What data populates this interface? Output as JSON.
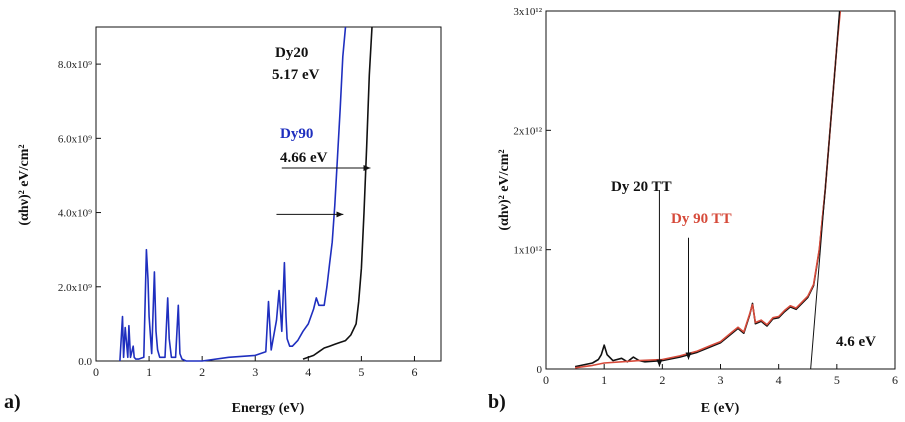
{
  "chart_data": [
    {
      "type": "line",
      "panel_label": "a)",
      "xlabel": "Energy (eV)",
      "ylabel": "(αhν)² eV/cm²",
      "xlim": [
        0,
        6.5
      ],
      "ylim": [
        0,
        9000000000.0
      ],
      "x_ticks": [
        0,
        1,
        2,
        3,
        4,
        5,
        6
      ],
      "y_ticks": [
        {
          "value": 0,
          "label": "0.0"
        },
        {
          "value": 2000000000.0,
          "label": "2.0x10⁹"
        },
        {
          "value": 4000000000.0,
          "label": "4.0x10⁹"
        },
        {
          "value": 6000000000.0,
          "label": "6.0x10⁹"
        },
        {
          "value": 8000000000.0,
          "label": "8.0x10⁹"
        }
      ],
      "series": [
        {
          "name": "Dy90",
          "color": "#1f2fbf",
          "x": [
            0.45,
            0.5,
            0.52,
            0.55,
            0.6,
            0.62,
            0.65,
            0.7,
            0.72,
            0.75,
            0.8,
            0.9,
            0.95,
            0.98,
            1.0,
            1.05,
            1.1,
            1.13,
            1.16,
            1.2,
            1.3,
            1.35,
            1.38,
            1.42,
            1.5,
            1.55,
            1.58,
            1.62,
            1.7,
            2.0,
            2.5,
            3.0,
            3.2,
            3.25,
            3.3,
            3.4,
            3.45,
            3.5,
            3.55,
            3.58,
            3.6,
            3.65,
            3.7,
            3.8,
            3.9,
            4.0,
            4.1,
            4.15,
            4.2,
            4.3,
            4.35,
            4.4,
            4.45,
            4.5,
            4.55,
            4.6,
            4.65,
            4.7
          ],
          "y": [
            0,
            1200000000.0,
            100000000.0,
            900000000.0,
            100000000.0,
            950000000.0,
            100000000.0,
            400000000.0,
            100000000.0,
            50000000.0,
            50000000.0,
            100000000.0,
            3000000000.0,
            2200000000.0,
            1200000000.0,
            200000000.0,
            2400000000.0,
            800000000.0,
            300000000.0,
            100000000.0,
            100000000.0,
            1700000000.0,
            600000000.0,
            100000000.0,
            100000000.0,
            1500000000.0,
            200000000.0,
            50000000.0,
            0.0,
            0.0,
            100000000.0,
            150000000.0,
            250000000.0,
            1600000000.0,
            300000000.0,
            1100000000.0,
            1900000000.0,
            800000000.0,
            2650000000.0,
            1200000000.0,
            600000000.0,
            400000000.0,
            400000000.0,
            550000000.0,
            800000000.0,
            1000000000.0,
            1400000000.0,
            1700000000.0,
            1500000000.0,
            1500000000.0,
            2000000000.0,
            2600000000.0,
            3200000000.0,
            4200000000.0,
            5500000000.0,
            6800000000.0,
            8200000000.0,
            9000000000.0
          ]
        },
        {
          "name": "Dy20",
          "color": "#111111",
          "x": [
            3.9,
            4.0,
            4.1,
            4.2,
            4.3,
            4.4,
            4.5,
            4.6,
            4.7,
            4.8,
            4.9,
            4.95,
            5.0,
            5.05,
            5.1,
            5.15,
            5.2
          ],
          "y": [
            50000000.0,
            100000000.0,
            150000000.0,
            250000000.0,
            350000000.0,
            400000000.0,
            450000000.0,
            500000000.0,
            550000000.0,
            700000000.0,
            1000000000.0,
            1600000000.0,
            2500000000.0,
            4000000000.0,
            5800000000.0,
            7700000000.0,
            9000000000.0
          ]
        }
      ],
      "annotations": [
        {
          "text": "Dy20",
          "color": "#111111",
          "arrow_from": [
            3.5,
            5200000000.0
          ],
          "arrow_to": [
            5.17,
            5200000000.0
          ]
        },
        {
          "text": "5.17 eV",
          "color": "#111111"
        },
        {
          "text": "Dy90",
          "color": "#1f2fbf",
          "arrow_from": [
            3.4,
            3950000000.0
          ],
          "arrow_to": [
            4.66,
            3950000000.0
          ]
        },
        {
          "text": "4.66 eV",
          "color": "#111111"
        }
      ]
    },
    {
      "type": "line",
      "panel_label": "b)",
      "xlabel": "E (eV)",
      "ylabel": "(αhν)² eV/cm²",
      "xlim": [
        0,
        6
      ],
      "ylim": [
        0,
        3000000000000.0
      ],
      "x_ticks": [
        0,
        1,
        2,
        3,
        4,
        5,
        6
      ],
      "y_ticks": [
        {
          "value": 0,
          "label": "0"
        },
        {
          "value": 1000000000000.0,
          "label": "1x10¹²"
        },
        {
          "value": 2000000000000.0,
          "label": "2x10¹²"
        },
        {
          "value": 3000000000000.0,
          "label": "3x10¹²"
        }
      ],
      "series": [
        {
          "name": "Dy 20 TT",
          "color": "#111111",
          "x": [
            0.5,
            0.8,
            0.9,
            0.95,
            1.0,
            1.05,
            1.15,
            1.3,
            1.4,
            1.5,
            1.6,
            1.7,
            2.0,
            2.3,
            2.6,
            2.8,
            3.0,
            3.2,
            3.3,
            3.4,
            3.5,
            3.55,
            3.6,
            3.7,
            3.8,
            3.9,
            4.0,
            4.1,
            4.2,
            4.3,
            4.4,
            4.5,
            4.6,
            4.7,
            4.8,
            4.9,
            5.0,
            5.05
          ],
          "y": [
            20000000000.0,
            50000000000.0,
            80000000000.0,
            120000000000.0,
            200000000000.0,
            120000000000.0,
            70000000000.0,
            90000000000.0,
            60000000000.0,
            100000000000.0,
            70000000000.0,
            60000000000.0,
            70000000000.0,
            100000000000.0,
            140000000000.0,
            180000000000.0,
            220000000000.0,
            300000000000.0,
            340000000000.0,
            300000000000.0,
            450000000000.0,
            550000000000.0,
            380000000000.0,
            400000000000.0,
            360000000000.0,
            420000000000.0,
            430000000000.0,
            480000000000.0,
            520000000000.0,
            500000000000.0,
            550000000000.0,
            600000000000.0,
            700000000000.0,
            1000000000000.0,
            1500000000000.0,
            2100000000000.0,
            2700000000000.0,
            3000000000000.0
          ]
        },
        {
          "name": "Dy 90 TT",
          "color": "#d64a3a",
          "x": [
            0.5,
            0.8,
            1.0,
            1.3,
            1.6,
            2.0,
            2.3,
            2.6,
            2.8,
            3.0,
            3.2,
            3.3,
            3.4,
            3.5,
            3.55,
            3.6,
            3.7,
            3.8,
            3.9,
            4.0,
            4.1,
            4.2,
            4.3,
            4.4,
            4.5,
            4.6,
            4.7,
            4.8,
            4.9,
            5.0,
            5.06
          ],
          "y": [
            10000000000.0,
            30000000000.0,
            50000000000.0,
            60000000000.0,
            70000000000.0,
            80000000000.0,
            110000000000.0,
            150000000000.0,
            190000000000.0,
            230000000000.0,
            310000000000.0,
            350000000000.0,
            310000000000.0,
            460000000000.0,
            540000000000.0,
            390000000000.0,
            410000000000.0,
            370000000000.0,
            430000000000.0,
            440000000000.0,
            490000000000.0,
            530000000000.0,
            510000000000.0,
            560000000000.0,
            610000000000.0,
            710000000000.0,
            1010000000000.0,
            1500000000000.0,
            2100000000000.0,
            2700000000000.0,
            3000000000000.0
          ]
        }
      ],
      "tangent": {
        "x": [
          4.55,
          5.05
        ],
        "y": [
          0,
          3000000000000.0
        ],
        "color": "#111111"
      },
      "annotations": [
        {
          "text": "Dy 20 TT",
          "color": "#111111",
          "arrow_from": [
            1.95,
            1500000000000.0
          ],
          "arrow_to": [
            1.95,
            20000000000.0
          ]
        },
        {
          "text": "Dy 90 TT",
          "color": "#d64a3a",
          "arrow_from": [
            2.45,
            1100000000000.0
          ],
          "arrow_to": [
            2.45,
            80000000000.0
          ]
        },
        {
          "text": "4.6 eV",
          "color": "#111111"
        }
      ]
    }
  ]
}
